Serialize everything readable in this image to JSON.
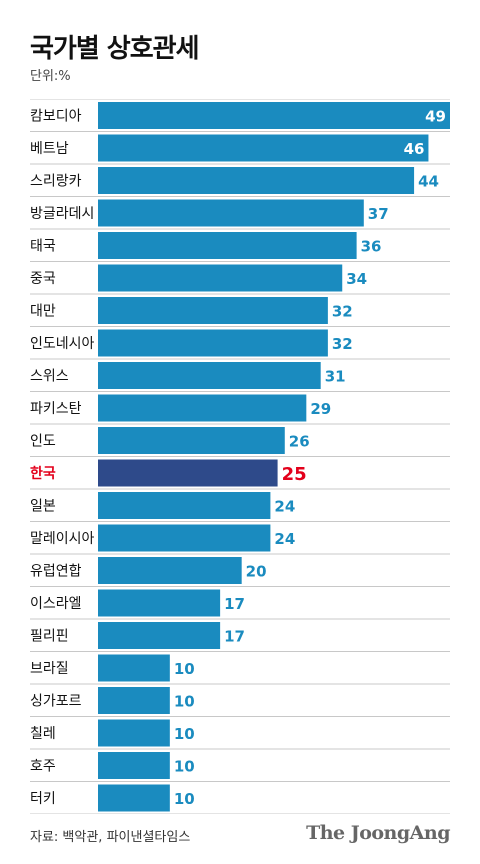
{
  "title": "국가별 상호관세",
  "unit_label": "단위:%",
  "source": "자료: 백악관, 파이낸셜타임스",
  "logo": "The JoongAng",
  "colors": {
    "bar": "#1a8bbf",
    "highlight_bar": "#2e4a8a",
    "highlight_text": "#e3001b",
    "value_text": "#1a8bbf",
    "divider": "#c8c8c8"
  },
  "chart_data": {
    "type": "bar",
    "orientation": "horizontal",
    "highlight": "한국",
    "categories": [
      "캄보디아",
      "베트남",
      "스리랑카",
      "방글라데시",
      "태국",
      "중국",
      "대만",
      "인도네시아",
      "스위스",
      "파키스탄",
      "인도",
      "한국",
      "일본",
      "말레이시아",
      "유럽연합",
      "이스라엘",
      "필리핀",
      "브라질",
      "싱가포르",
      "칠레",
      "호주",
      "터키"
    ],
    "values": [
      49,
      46,
      44,
      37,
      36,
      34,
      32,
      32,
      31,
      29,
      26,
      25,
      24,
      24,
      20,
      17,
      17,
      10,
      10,
      10,
      10,
      10
    ],
    "xlim": [
      0,
      49
    ],
    "grid": false,
    "legend": "none"
  }
}
